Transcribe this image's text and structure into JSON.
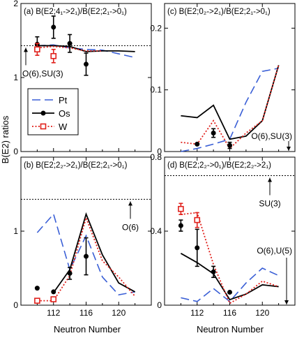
{
  "figure": {
    "xlabel_bottom": "Neutron Number",
    "ylabel": "B(E2) ratios"
  },
  "colors": {
    "Pt": "#3a5fd6",
    "Os": "#000000",
    "W": "#e0201b"
  },
  "legend": {
    "items": [
      {
        "label": "Pt",
        "style": "dashed",
        "color": "#3a5fd6"
      },
      {
        "label": "Os",
        "style": "solid-dot",
        "color": "#000000"
      },
      {
        "label": "W",
        "style": "dotted-square",
        "color": "#e0201b"
      }
    ]
  },
  "chart_data": [
    {
      "panel": "a",
      "type": "line",
      "title": "(a) B(E2;4₁->2₁)/B(E2;2₁->0₁)",
      "xlim": [
        108,
        124
      ],
      "ylim": [
        0,
        2
      ],
      "yticks": [
        0,
        1,
        2
      ],
      "xticks": [
        112,
        116,
        120
      ],
      "show_xticklabels": false,
      "reference_line": {
        "value": 1.43,
        "label": "O(6),SU(3)"
      },
      "series": [
        {
          "name": "Pt",
          "line": {
            "x": [
              110,
              112,
              114,
              116,
              118,
              120,
              122
            ],
            "y": [
              1.43,
              1.44,
              1.4,
              1.38,
              1.37,
              1.32,
              1.27
            ]
          }
        },
        {
          "name": "Os",
          "line": {
            "x": [
              110,
              112,
              114,
              116,
              118,
              120,
              122
            ],
            "y": [
              1.43,
              1.43,
              1.42,
              1.35,
              1.36,
              1.36,
              1.35
            ]
          },
          "points": [
            {
              "x": 110,
              "y": 1.45,
              "err": 0.1
            },
            {
              "x": 112,
              "y": 1.68,
              "err": 0.15
            },
            {
              "x": 114,
              "y": 1.46,
              "err": 0.12
            },
            {
              "x": 116,
              "y": 1.18,
              "err": 0.15
            }
          ]
        },
        {
          "name": "W",
          "line": {
            "x": [
              110,
              112,
              114,
              116,
              118
            ],
            "y": [
              1.4,
              1.42,
              1.4,
              1.36,
              1.36
            ]
          },
          "points": [
            {
              "x": 110,
              "y": 1.38,
              "err": 0.08
            },
            {
              "x": 112,
              "y": 1.29,
              "err": 0.09
            }
          ]
        }
      ]
    },
    {
      "panel": "c",
      "type": "line",
      "title": "(c) B(E2;0₂->2₁)/B(E2;2₁->0₁)",
      "xlim": [
        108,
        124
      ],
      "ylim": [
        0,
        0.24
      ],
      "yticks": [
        0,
        0.1,
        0.2
      ],
      "xticks": [
        112,
        116,
        120
      ],
      "show_xticklabels": false,
      "reference_line": {
        "value": 0,
        "label": "O(6),SU(3)"
      },
      "series": [
        {
          "name": "Pt",
          "line": {
            "x": [
              110,
              112,
              114,
              116,
              118,
              120,
              122
            ],
            "y": [
              0.0,
              0.005,
              0.012,
              0.02,
              0.08,
              0.13,
              0.135
            ]
          }
        },
        {
          "name": "Os",
          "line": {
            "x": [
              110,
              112,
              114,
              116,
              118,
              120,
              122
            ],
            "y": [
              0.058,
              0.055,
              0.075,
              0.02,
              0.025,
              0.05,
              0.14
            ]
          },
          "points": [
            {
              "x": 112,
              "y": 0.012,
              "err": 0.0
            },
            {
              "x": 114,
              "y": 0.03,
              "err": 0.007
            },
            {
              "x": 116,
              "y": 0.01,
              "err": 0.005
            }
          ]
        },
        {
          "name": "W",
          "line": {
            "x": [
              110,
              112,
              114,
              116,
              118,
              120,
              122
            ],
            "y": [
              0.015,
              0.012,
              0.05,
              0.005,
              0.03,
              0.05,
              0.14
            ]
          }
        }
      ]
    },
    {
      "panel": "b",
      "type": "line",
      "title": "(b) B(E2;2₂->2₁)/B(E2;2₁->0₁)",
      "xlim": [
        108,
        124
      ],
      "ylim": [
        0,
        2
      ],
      "yticks": [
        0,
        1
      ],
      "xticks": [
        112,
        116,
        120
      ],
      "show_xticklabels": true,
      "reference_line": {
        "value": 1.43,
        "label": "O(6)"
      },
      "series": [
        {
          "name": "Pt",
          "line": {
            "x": [
              110,
              112,
              114,
              116,
              118,
              120,
              122
            ],
            "y": [
              0.98,
              1.23,
              0.48,
              0.94,
              0.38,
              0.14,
              0.18
            ]
          }
        },
        {
          "name": "Os",
          "line": {
            "x": [
              112,
              114,
              116,
              118,
              120,
              122
            ],
            "y": [
              0.17,
              0.48,
              1.23,
              0.68,
              0.3,
              0.18
            ]
          },
          "points": [
            {
              "x": 110,
              "y": 0.23,
              "err": 0.0
            },
            {
              "x": 112,
              "y": 0.18,
              "err": 0.0
            },
            {
              "x": 114,
              "y": 0.43,
              "err": 0.08
            },
            {
              "x": 116,
              "y": 0.66,
              "err": 0.25
            }
          ]
        },
        {
          "name": "W",
          "line": {
            "x": [
              110,
              112,
              114,
              116,
              118,
              120,
              122
            ],
            "y": [
              0.06,
              0.06,
              0.4,
              1.18,
              0.6,
              0.38,
              0.12
            ]
          },
          "points": [
            {
              "x": 110,
              "y": 0.06,
              "err": 0.0
            },
            {
              "x": 112,
              "y": 0.08,
              "err": 0.0
            }
          ]
        }
      ]
    },
    {
      "panel": "d",
      "type": "line",
      "title": "(d) B(E2;2₂->0₁)/B(E2;2₂->2₁)",
      "xlim": [
        108,
        124
      ],
      "ylim": [
        0,
        0.8
      ],
      "yticks": [
        0,
        0.4,
        0.8
      ],
      "xticks": [
        112,
        116,
        120
      ],
      "show_xticklabels": true,
      "reference_line": {
        "value": 0.7,
        "label": "SU(3)"
      },
      "extra_marker": {
        "value": 0,
        "label": "O(6),U(5)"
      },
      "series": [
        {
          "name": "Pt",
          "line": {
            "x": [
              110,
              112,
              114,
              116,
              118,
              120,
              122
            ],
            "y": [
              0.04,
              0.02,
              0.09,
              0.02,
              0.12,
              0.2,
              0.16
            ]
          }
        },
        {
          "name": "Os",
          "line": {
            "x": [
              110,
              112,
              114,
              116,
              118,
              120,
              122
            ],
            "y": [
              0.28,
              0.23,
              0.17,
              0.03,
              0.06,
              0.11,
              0.1
            ]
          },
          "points": [
            {
              "x": 110,
              "y": 0.43,
              "err": 0.03
            },
            {
              "x": 112,
              "y": 0.31,
              "err": 0.1
            },
            {
              "x": 114,
              "y": 0.18,
              "err": 0.03
            },
            {
              "x": 116,
              "y": 0.07,
              "err": 0.0
            }
          ]
        },
        {
          "name": "W",
          "line": {
            "x": [
              110,
              112,
              114,
              116,
              118,
              120,
              122
            ],
            "y": [
              0.49,
              0.5,
              0.22,
              0.01,
              0.06,
              0.13,
              0.1
            ]
          },
          "points": [
            {
              "x": 110,
              "y": 0.52,
              "err": 0.03
            },
            {
              "x": 112,
              "y": 0.46,
              "err": 0.04
            }
          ]
        }
      ]
    }
  ]
}
